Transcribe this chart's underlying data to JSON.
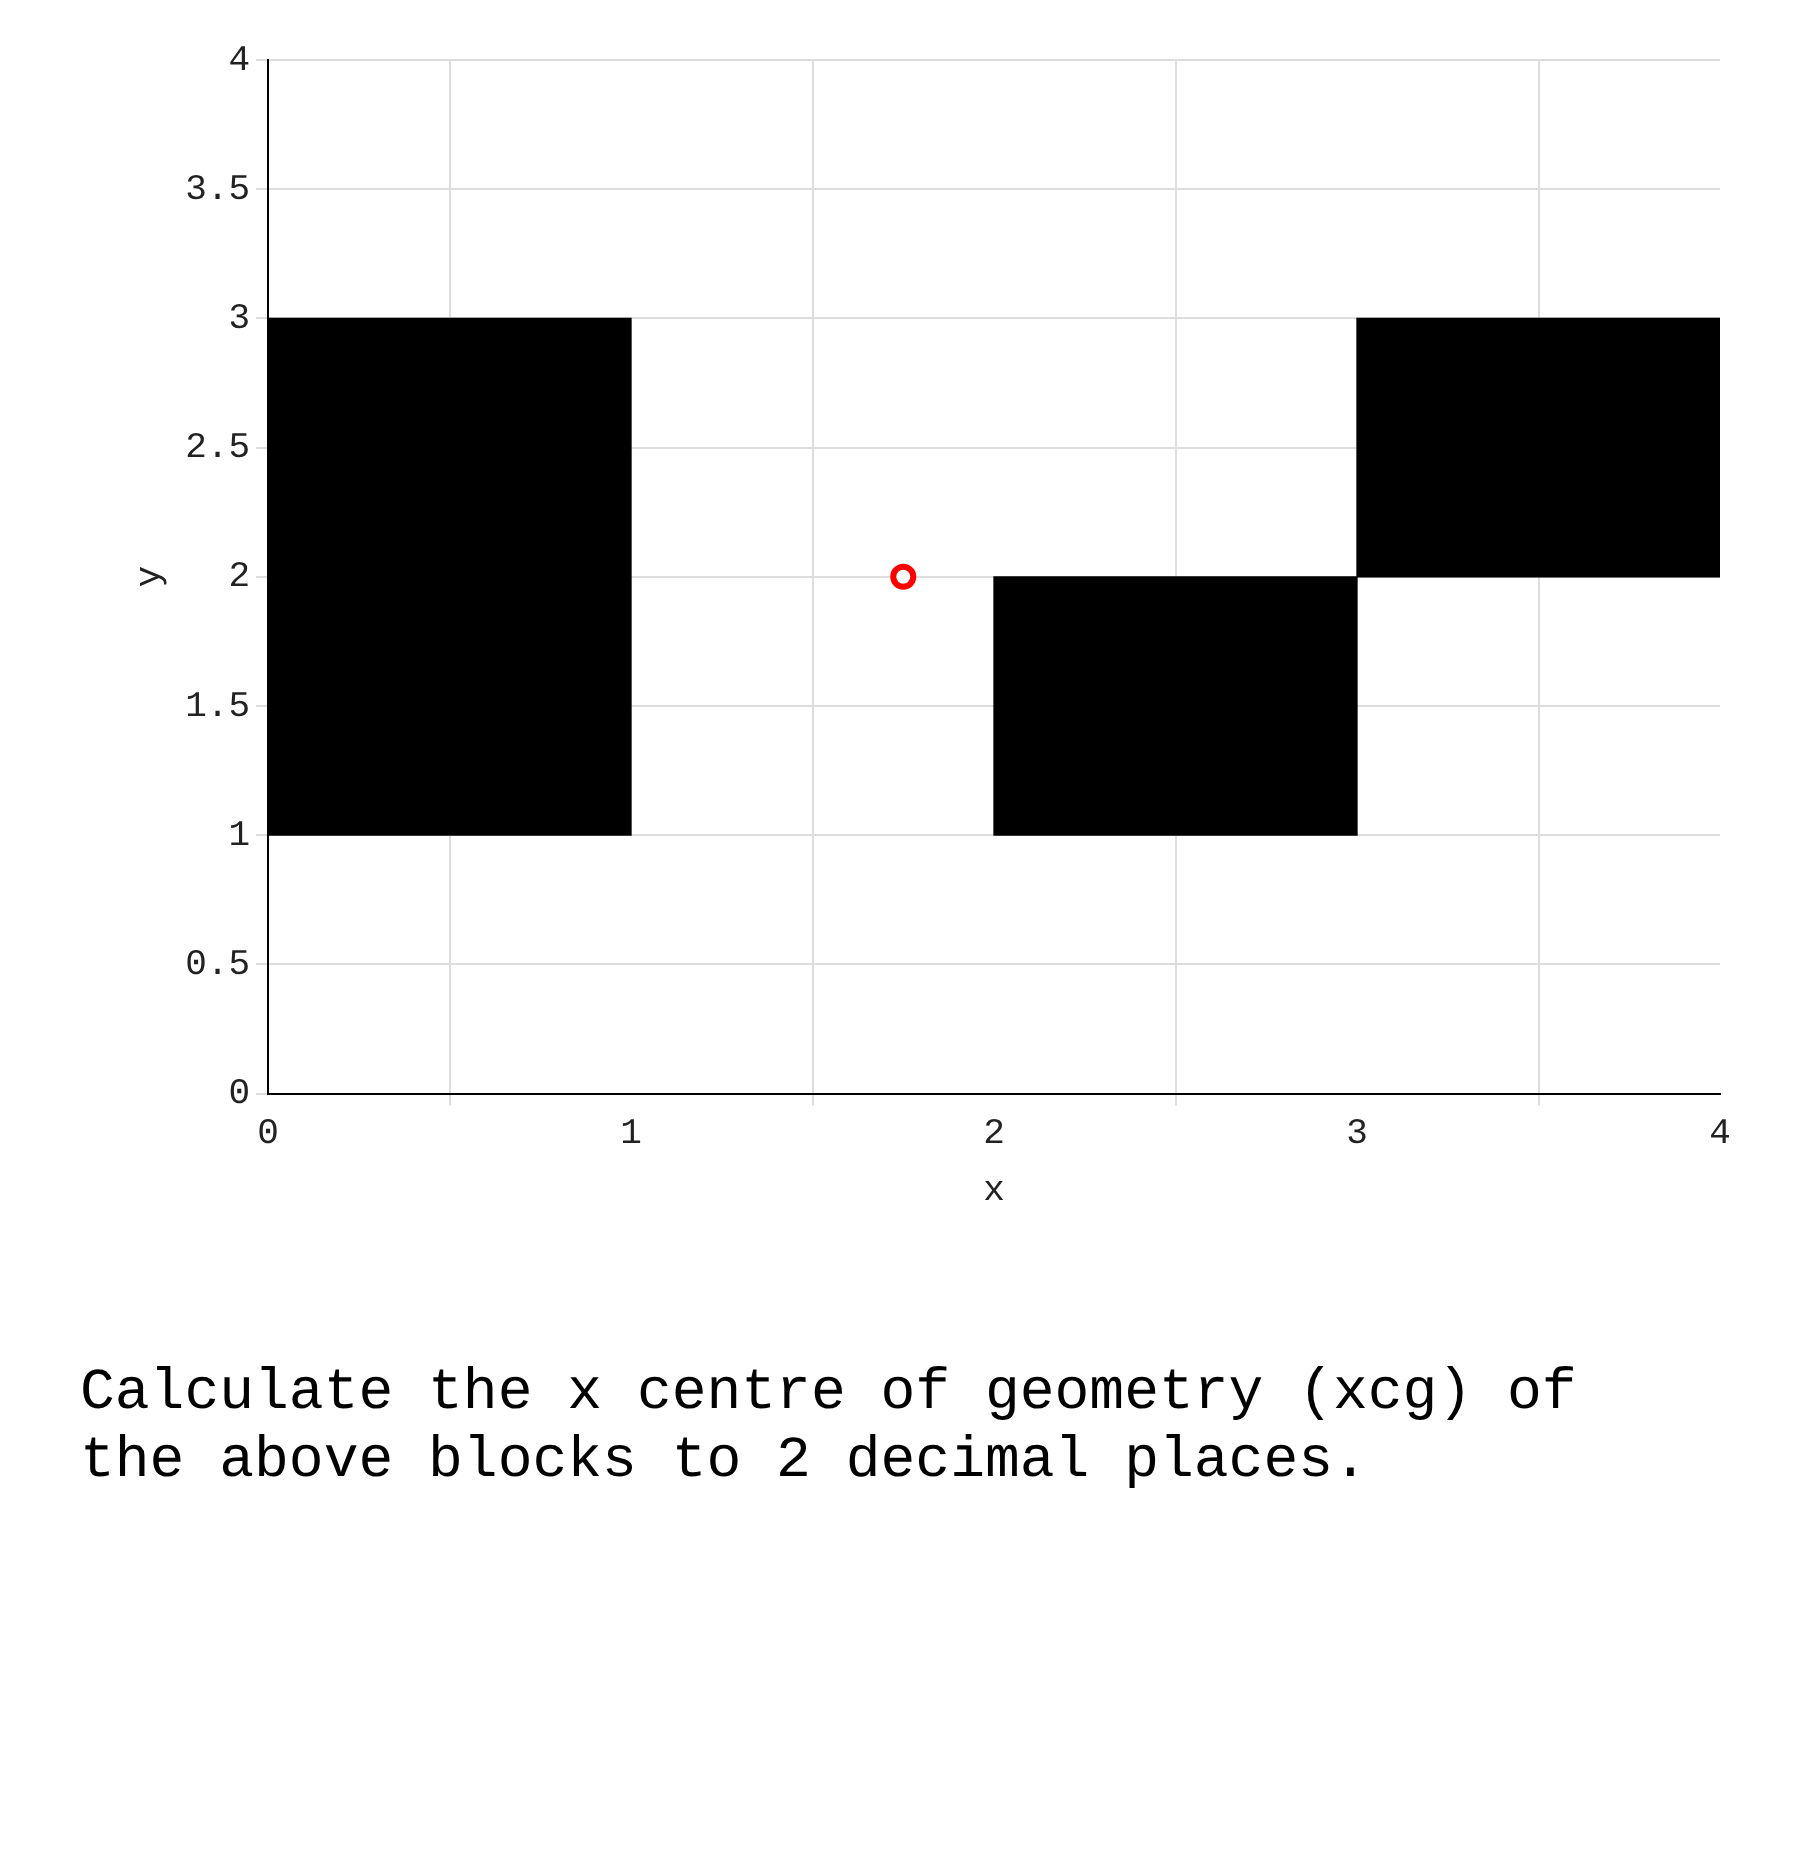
{
  "chart_data": {
    "type": "bar",
    "xlabel": "x",
    "ylabel": "y",
    "xlim": [
      0,
      4
    ],
    "xticks": [
      0,
      1,
      2,
      3,
      4
    ],
    "ylim": [
      0,
      4
    ],
    "yticks": [
      0,
      0.5,
      1,
      1.5,
      2,
      2.5,
      3,
      3.5,
      4
    ],
    "grid": true,
    "series": [
      {
        "color": "#000000",
        "x": [
          0.5,
          2.5,
          3.5
        ],
        "base": [
          1,
          1,
          2
        ],
        "values": [
          2,
          1,
          1
        ]
      },
      {
        "type": "scatter",
        "color": "#ff0000",
        "x": [
          1.75
        ],
        "values": [
          2
        ],
        "marker": "circle"
      }
    ],
    "annotations": [
      "Calculate the x centre of geometry (xcg) of the above blocks to 2 decimal places."
    ]
  }
}
